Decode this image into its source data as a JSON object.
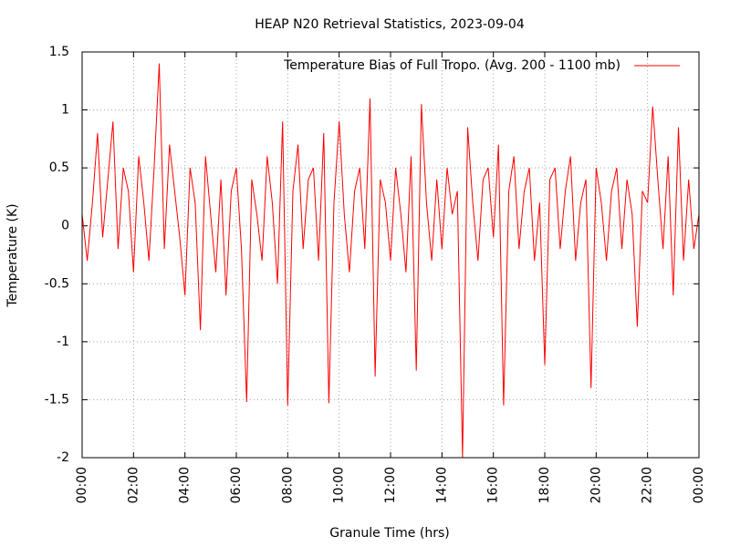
{
  "chart_data": {
    "type": "line",
    "title": "HEAP N20 Retrieval Statistics, 2023-09-04",
    "x_label": "Granule Time (hrs)",
    "y_label": "Temperature (K)",
    "xlim": [
      0,
      24
    ],
    "xticks": [
      {
        "value": 0,
        "label": "00:00"
      },
      {
        "value": 2,
        "label": "02:00"
      },
      {
        "value": 4,
        "label": "04:00"
      },
      {
        "value": 6,
        "label": "06:00"
      },
      {
        "value": 8,
        "label": "08:00"
      },
      {
        "value": 10,
        "label": "10:00"
      },
      {
        "value": 12,
        "label": "12:00"
      },
      {
        "value": 14,
        "label": "14:00"
      },
      {
        "value": 16,
        "label": "16:00"
      },
      {
        "value": 18,
        "label": "18:00"
      },
      {
        "value": 20,
        "label": "20:00"
      },
      {
        "value": 22,
        "label": "22:00"
      },
      {
        "value": 24,
        "label": "00:00"
      }
    ],
    "ylim": [
      -2,
      1.5
    ],
    "yticks": [
      -2,
      -1.5,
      -1,
      -0.5,
      0,
      0.5,
      1,
      1.5
    ],
    "grid": true,
    "legend": "top-right",
    "x": [
      0,
      0.2,
      0.4,
      0.6,
      0.8,
      1,
      1.2,
      1.4,
      1.6,
      1.8,
      2,
      2.2,
      2.4,
      2.6,
      2.8,
      3,
      3.2,
      3.4,
      3.6,
      3.8,
      4,
      4.2,
      4.4,
      4.6,
      4.8,
      5,
      5.2,
      5.4,
      5.6,
      5.8,
      6,
      6.2,
      6.4,
      6.6,
      6.8,
      7,
      7.2,
      7.4,
      7.6,
      7.8,
      8,
      8.2,
      8.4,
      8.6,
      8.8,
      9,
      9.2,
      9.4,
      9.6,
      9.8,
      10,
      10.2,
      10.4,
      10.6,
      10.8,
      11,
      11.2,
      11.4,
      11.6,
      11.8,
      12,
      12.2,
      12.4,
      12.6,
      12.8,
      13,
      13.2,
      13.4,
      13.6,
      13.8,
      14,
      14.2,
      14.4,
      14.6,
      14.8,
      15,
      15.2,
      15.4,
      15.6,
      15.8,
      16,
      16.2,
      16.4,
      16.6,
      16.8,
      17,
      17.2,
      17.4,
      17.6,
      17.8,
      18,
      18.2,
      18.4,
      18.6,
      18.8,
      19,
      19.2,
      19.4,
      19.6,
      19.8,
      20,
      20.2,
      20.4,
      20.6,
      20.8,
      21,
      21.2,
      21.4,
      21.6,
      21.8,
      22,
      22.2,
      22.4,
      22.6,
      22.8,
      23,
      23.2,
      23.4,
      23.6,
      23.8,
      24
    ],
    "series": [
      {
        "name": "Temperature Bias of Full Tropo. (Avg. 200 - 1100 mb)",
        "color": "#ff0000",
        "values": [
          0.1,
          -0.3,
          0.2,
          0.8,
          -0.1,
          0.4,
          0.9,
          -0.2,
          0.5,
          0.3,
          -0.4,
          0.6,
          0.2,
          -0.3,
          0.5,
          1.4,
          -0.2,
          0.7,
          0.3,
          -0.1,
          -0.6,
          0.5,
          0.2,
          -0.9,
          0.6,
          0.1,
          -0.4,
          0.4,
          -0.6,
          0.3,
          0.5,
          -0.2,
          -1.52,
          0.4,
          0.1,
          -0.3,
          0.6,
          0.2,
          -0.5,
          0.9,
          -1.55,
          0.3,
          0.7,
          -0.2,
          0.4,
          0.5,
          -0.3,
          0.8,
          -1.53,
          0.2,
          0.9,
          0.1,
          -0.4,
          0.3,
          0.5,
          -0.2,
          1.1,
          -1.3,
          0.4,
          0.2,
          -0.3,
          0.5,
          0.1,
          -0.4,
          0.6,
          -1.25,
          1.05,
          0.2,
          -0.3,
          0.4,
          -0.2,
          0.5,
          0.1,
          0.3,
          -2,
          0.85,
          0.2,
          -0.3,
          0.4,
          0.5,
          -0.1,
          0.7,
          -1.55,
          0.3,
          0.6,
          -0.2,
          0.3,
          0.5,
          -0.3,
          0.2,
          -1.2,
          0.4,
          0.5,
          -0.2,
          0.3,
          0.6,
          -0.3,
          0.2,
          0.4,
          -1.4,
          0.5,
          0.2,
          -0.3,
          0.3,
          0.5,
          -0.2,
          0.4,
          0.1,
          -0.87,
          0.3,
          0.2,
          1.03,
          0.4,
          -0.2,
          0.6,
          -0.6,
          0.85,
          -0.3,
          0.4,
          -0.2,
          0.1
        ]
      }
    ]
  }
}
